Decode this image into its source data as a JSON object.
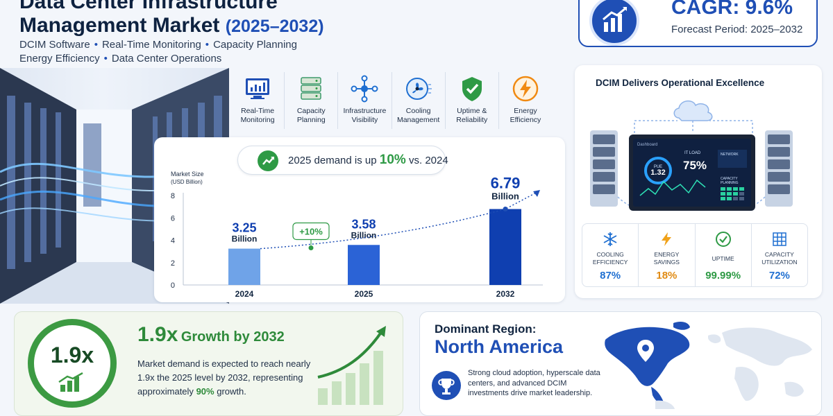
{
  "header": {
    "title_line1": "Data Center Infrastructure",
    "title_line2": "Management Market",
    "title_years": "(2025–2032)",
    "tags_row1": [
      "DCIM Software",
      "Real-Time Monitoring",
      "Capacity Planning"
    ],
    "tags_row2": [
      "Energy Efficiency",
      "Data Center Operations"
    ]
  },
  "cagr": {
    "value": "CAGR: 9.6%",
    "period": "Forecast Period: 2025–2032",
    "icon": "growth-chart-icon"
  },
  "features": [
    {
      "line1": "Real-Time",
      "line2": "Monitoring",
      "icon": "monitor-chart-icon"
    },
    {
      "line1": "Capacity",
      "line2": "Planning",
      "icon": "server-rack-icon"
    },
    {
      "line1": "Infrastructure",
      "line2": "Visibility",
      "icon": "network-nodes-icon"
    },
    {
      "line1": "Cooling",
      "line2": "Management",
      "icon": "fan-icon"
    },
    {
      "line1": "Uptime &",
      "line2": "Reliability",
      "icon": "shield-check-icon"
    },
    {
      "line1": "Energy",
      "line2": "Efficiency",
      "icon": "lightning-icon"
    }
  ],
  "demand": {
    "prefix": "2025 demand is up",
    "highlight": "10%",
    "suffix": "vs. 2024"
  },
  "chart_data": {
    "type": "bar",
    "ylabel_line1": "Market Size",
    "ylabel_line2": "(USD Billion)",
    "ylim": [
      0,
      8
    ],
    "yticks": [
      "0",
      "2",
      "4",
      "6",
      "8"
    ],
    "grid": false,
    "categories": [
      "2024",
      "2025",
      "2032"
    ],
    "values": [
      3.25,
      3.58,
      6.79
    ],
    "value_labels": [
      "3.25",
      "3.58",
      "6.79"
    ],
    "unit_label": "Billion",
    "colors": [
      "#6fa3e8",
      "#2b63d6",
      "#0f3fb0"
    ],
    "annotation": "+10%",
    "trend_line": "dotted",
    "annotation_color": "#2e9a45"
  },
  "ops": {
    "title": "DCIM Delivers Operational Excellence",
    "dashboard": {
      "header": "Dashboard",
      "pue_label": "PUE",
      "pue_value": "1.32",
      "it_label": "IT LOAD",
      "it_value": "75%",
      "cap_label1": "CAPACITY",
      "cap_label2": "PLANNING",
      "net_label": "NETWORK"
    },
    "metrics": [
      {
        "line1": "COOLING",
        "line2": "EFFICIENCY",
        "value": "87%",
        "color": "#1f6fd1",
        "icon": "snowflake-icon"
      },
      {
        "line1": "ENERGY",
        "line2": "SAVINGS",
        "value": "18%",
        "color": "#e08a12",
        "icon": "lightning-icon"
      },
      {
        "line1": "UPTIME",
        "line2": "",
        "value": "99.99%",
        "color": "#2e9a45",
        "icon": "check-circle-icon"
      },
      {
        "line1": "CAPACITY",
        "line2": "UTILIZATION",
        "value": "72%",
        "color": "#1f6fd1",
        "icon": "grid-icon"
      }
    ]
  },
  "growth": {
    "ring_value": "1.9x",
    "title_value": "1.9x",
    "title_rest": "Growth by 2032",
    "text_before": "Market demand is expected to reach nearly 1.9x the 2025 level by 2032, representing approximately",
    "text_highlight": "90%",
    "text_after": "growth."
  },
  "region": {
    "label": "Dominant Region:",
    "name": "North America",
    "text": "Strong cloud adoption, hyperscale data centers, and advanced DCIM investments drive market leadership.",
    "icon": "trophy-icon"
  }
}
